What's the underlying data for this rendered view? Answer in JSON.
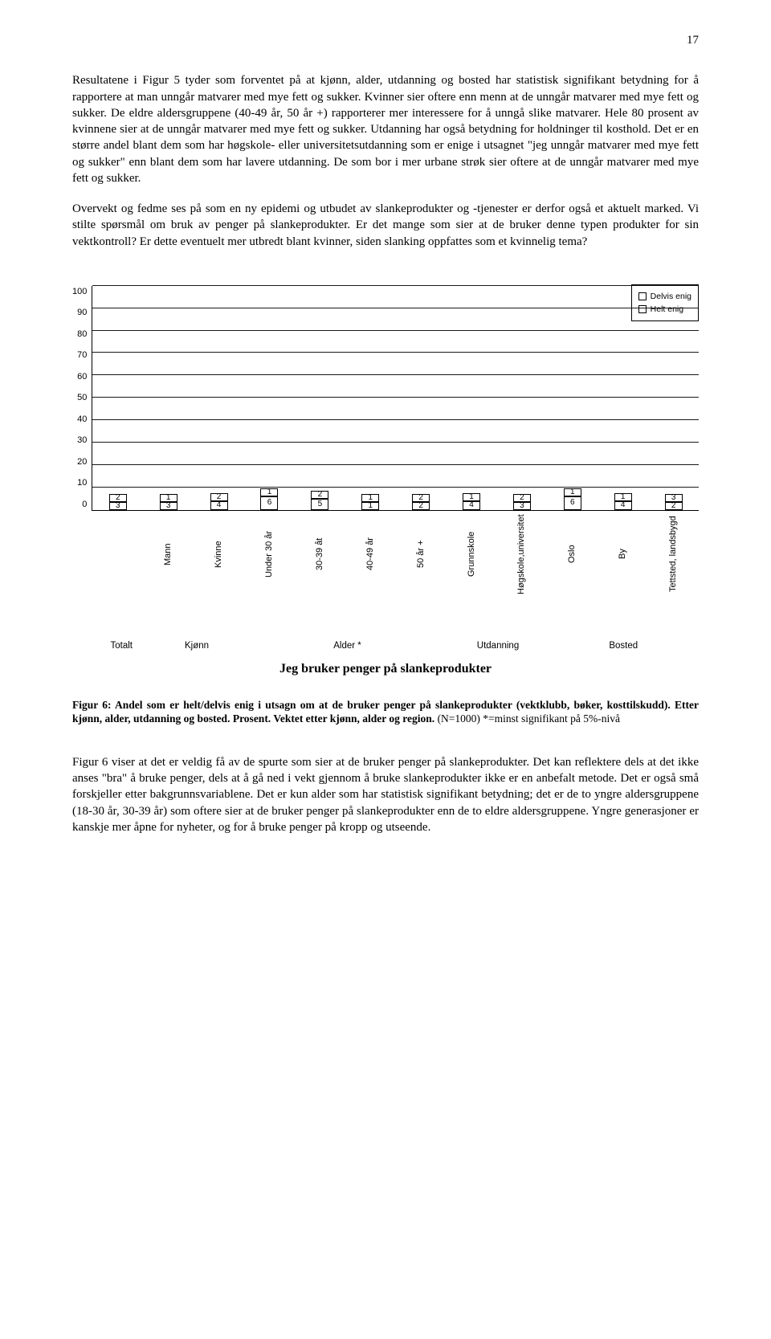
{
  "page_number": "17",
  "paragraphs": {
    "p1": "Resultatene i Figur 5 tyder som forventet på at kjønn, alder, utdanning og bosted har statistisk signifikant betydning for å rapportere at man unngår matvarer med mye fett og sukker. Kvinner sier oftere enn menn at de unngår matvarer med mye fett og sukker. De eldre aldersgruppene (40-49 år, 50 år +) rapporterer mer interessere for å unngå slike matvarer. Hele 80 prosent av kvinnene sier at de unngår matvarer med mye fett og sukker. Utdanning har også betydning for holdninger til kosthold. Det er en større andel blant dem som har høgskole- eller universitetsutdanning som er enige i utsagnet \"jeg unngår matvarer med mye fett og sukker\" enn blant dem som har lavere utdanning. De som bor i mer urbane strøk sier oftere at de unngår matvarer med mye fett og sukker.",
    "p2": "Overvekt og fedme ses på som en ny epidemi og utbudet av slankeprodukter og -tjenester er derfor også et aktuelt marked. Vi stilte spørsmål om bruk av penger på slankeprodukter. Er det mange som sier at de bruker denne typen produkter for sin vektkontroll? Er dette eventuelt mer utbredt blant kvinner, siden slanking oppfattes som et kvinnelig tema?",
    "p3": "Figur 6 viser at det er veldig få av de spurte som sier at de bruker penger på slankeprodukter. Det kan reflektere dels at det ikke anses \"bra\" å bruke penger, dels at å gå ned i vekt gjennom å bruke slankeprodukter ikke er en anbefalt metode. Det er også små forskjeller etter bakgrunnsvariablene. Det er kun alder som har statistisk signifikant betydning; det er de to yngre aldersgruppene (18-30 år, 30-39 år) som oftere sier at de bruker penger på slankeprodukter enn de to eldre aldersgruppene. Yngre generasjoner er kanskje mer åpne for nyheter, og for å bruke penger på kropp og utseende."
  },
  "chart": {
    "type": "stacked-bar",
    "title": "Jeg bruker penger på slankeprodukter",
    "ylim": [
      0,
      100
    ],
    "ytick_step": 10,
    "yticks": [
      "0",
      "10",
      "20",
      "30",
      "40",
      "50",
      "60",
      "70",
      "80",
      "90",
      "100"
    ],
    "legend": [
      {
        "label": "Delvis enig",
        "color": "#ffffff"
      },
      {
        "label": "Helt enig",
        "color": "#ffffff"
      }
    ],
    "colors": {
      "delvis": "#ffffff",
      "helt": "#ffffff",
      "border": "#000000",
      "grid": "#000000",
      "bg": "#ffffff"
    },
    "bars": [
      {
        "label": "",
        "delvis": "2",
        "helt": "3",
        "group": "Totalt"
      },
      {
        "label": "Mann",
        "delvis": "1",
        "helt": "3",
        "group": "Kjønn"
      },
      {
        "label": "Kvinne",
        "delvis": "2",
        "helt": "4",
        "group": "Kjønn"
      },
      {
        "label": "Under 30 år",
        "delvis": "1",
        "helt": "6",
        "group": "Alder *"
      },
      {
        "label": "30-39 åt",
        "delvis": "2",
        "helt": "5",
        "group": "Alder *"
      },
      {
        "label": "40-49 år",
        "delvis": "1",
        "helt": "1",
        "group": "Alder *"
      },
      {
        "label": "50 år +",
        "delvis": "2",
        "helt": "2",
        "group": "Alder *"
      },
      {
        "label": "Grunnskole",
        "delvis": "1",
        "helt": "4",
        "group": "Utdanning"
      },
      {
        "label": "Høgskole,universitet",
        "delvis": "2",
        "helt": "3",
        "group": "Utdanning"
      },
      {
        "label": "Oslo",
        "delvis": "1",
        "helt": "6",
        "group": "Bosted"
      },
      {
        "label": "By",
        "delvis": "1",
        "helt": "4",
        "group": "Bosted"
      },
      {
        "label": "Tettsted, landsbygd",
        "delvis": "3",
        "helt": "2",
        "group": "Bosted"
      }
    ],
    "groups": [
      {
        "label": "Totalt",
        "span": 1
      },
      {
        "label": "Kjønn",
        "span": 2
      },
      {
        "label": "Alder *",
        "span": 4
      },
      {
        "label": "Utdanning",
        "span": 2
      },
      {
        "label": "Bosted",
        "span": 3
      }
    ]
  },
  "caption": {
    "bold": "Figur 6: Andel som er helt/delvis enig i utsagn om at de bruker penger på slankeprodukter (vektklubb, bøker, kosttilskudd). Etter kjønn, alder, utdanning og bosted. Prosent. Vektet etter kjønn, alder og region.",
    "nonbold": "(N=1000) *=minst signifikant på 5%-nivå"
  }
}
